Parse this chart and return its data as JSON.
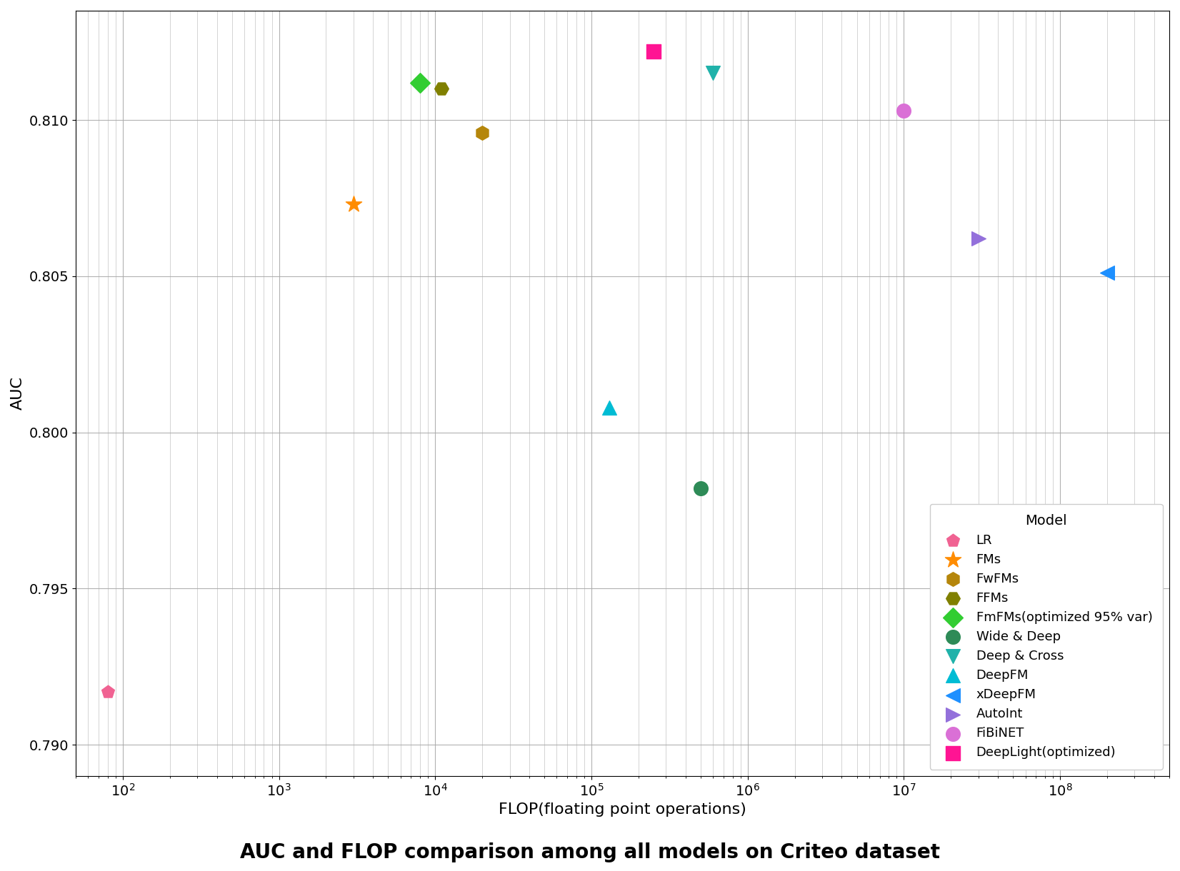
{
  "title": "AUC and FLOP comparison among all models on Criteo dataset",
  "xlabel": "FLOP(floating point operations)",
  "ylabel": "AUC",
  "models": [
    {
      "name": "LR",
      "flop": 80,
      "auc": 0.7917,
      "color": "#f06292",
      "marker": "p",
      "markersize": 180
    },
    {
      "name": "FMs",
      "flop": 3000,
      "auc": 0.8073,
      "color": "#ff8c00",
      "marker": "*",
      "markersize": 280
    },
    {
      "name": "FwFMs",
      "flop": 20000,
      "auc": 0.8096,
      "color": "#b5860b",
      "marker": "h",
      "markersize": 200
    },
    {
      "name": "FFMs",
      "flop": 11000,
      "auc": 0.811,
      "color": "#808000",
      "marker": "H",
      "markersize": 200
    },
    {
      "name": "FmFMs(optimized 95% var)",
      "flop": 8000,
      "auc": 0.8112,
      "color": "#32cd32",
      "marker": "D",
      "markersize": 200
    },
    {
      "name": "Wide & Deep",
      "flop": 500000,
      "auc": 0.7982,
      "color": "#2e8b57",
      "marker": "o",
      "markersize": 200
    },
    {
      "name": "Deep & Cross",
      "flop": 600000,
      "auc": 0.8115,
      "color": "#20b2aa",
      "marker": "v",
      "markersize": 200
    },
    {
      "name": "DeepFM",
      "flop": 130000,
      "auc": 0.8008,
      "color": "#00bcd4",
      "marker": "^",
      "markersize": 200
    },
    {
      "name": "xDeepFM",
      "flop": 200000000,
      "auc": 0.8051,
      "color": "#1e90ff",
      "marker": "<",
      "markersize": 200
    },
    {
      "name": "AutoInt",
      "flop": 30000000,
      "auc": 0.8062,
      "color": "#9370db",
      "marker": ">",
      "markersize": 200
    },
    {
      "name": "FiBiNET",
      "flop": 10000000,
      "auc": 0.8103,
      "color": "#da70d6",
      "marker": "o",
      "markersize": 200
    },
    {
      "name": "DeepLight(optimized)",
      "flop": 250000,
      "auc": 0.8122,
      "color": "#ff1493",
      "marker": "s",
      "markersize": 200
    }
  ],
  "xlim": [
    50,
    500000000.0
  ],
  "ylim": [
    0.789,
    0.8135
  ],
  "yticks": [
    0.79,
    0.795,
    0.8,
    0.805,
    0.81
  ],
  "legend_title": "Model",
  "background_color": "#ffffff",
  "grid_color": "#aaaaaa",
  "title_fontsize": 20,
  "label_fontsize": 16,
  "tick_fontsize": 14
}
